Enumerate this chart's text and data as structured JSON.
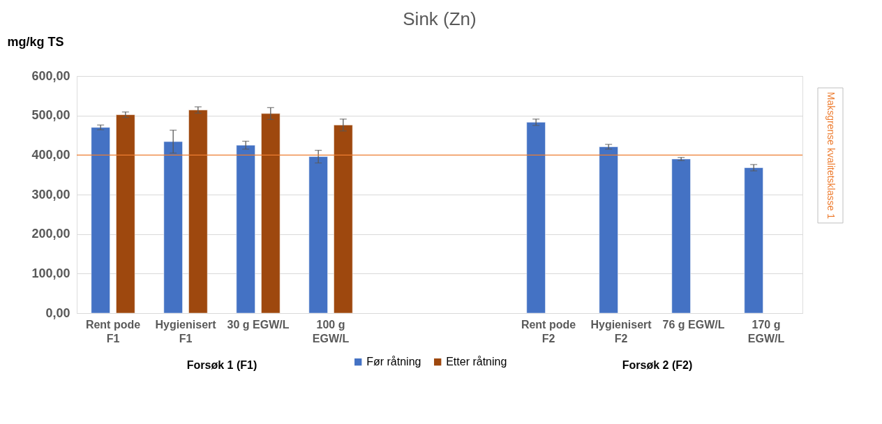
{
  "chart_data": {
    "type": "bar",
    "title": "Sink (Zn)",
    "ylabel": "mg/kg TS",
    "categories": [
      "Rent pode F1",
      "Hygienisert F1",
      "30 g EGW/L",
      "100 g EGW/L",
      null,
      null,
      "Rent pode F2",
      "Hygienisert F2",
      "76 g EGW/L",
      "170 g EGW/L"
    ],
    "series": [
      {
        "name": "Før råtning",
        "color": "#4472c4",
        "values": [
          470,
          434,
          425,
          396,
          null,
          null,
          483,
          421,
          390,
          368
        ],
        "errors": [
          6,
          29,
          10,
          16,
          null,
          null,
          8,
          6,
          4,
          8
        ]
      },
      {
        "name": "Etter råtning",
        "color": "#9e480e",
        "values": [
          502,
          514,
          505,
          476,
          null,
          null,
          null,
          null,
          null,
          null
        ],
        "errors": [
          7,
          8,
          15,
          15,
          null,
          null,
          null,
          null,
          null,
          null
        ]
      }
    ],
    "ylim": [
      0,
      600
    ],
    "yticks": [
      {
        "value": 0,
        "label": "0,00"
      },
      {
        "value": 100,
        "label": "100,00"
      },
      {
        "value": 200,
        "label": "200,00"
      },
      {
        "value": 300,
        "label": "300,00"
      },
      {
        "value": 400,
        "label": "400,00"
      },
      {
        "value": 500,
        "label": "500,00"
      },
      {
        "value": 600,
        "label": "600,00"
      }
    ],
    "ref_lines": [
      {
        "axis": "y",
        "value": 400,
        "label": "Maksgrense kvalitetsklasse 1",
        "color": "#ed7d31"
      }
    ],
    "annotations": [
      "Forsøk 1 (F1)",
      "Forsøk 2 (F2)"
    ],
    "grid": "y",
    "legend": "bottom"
  }
}
